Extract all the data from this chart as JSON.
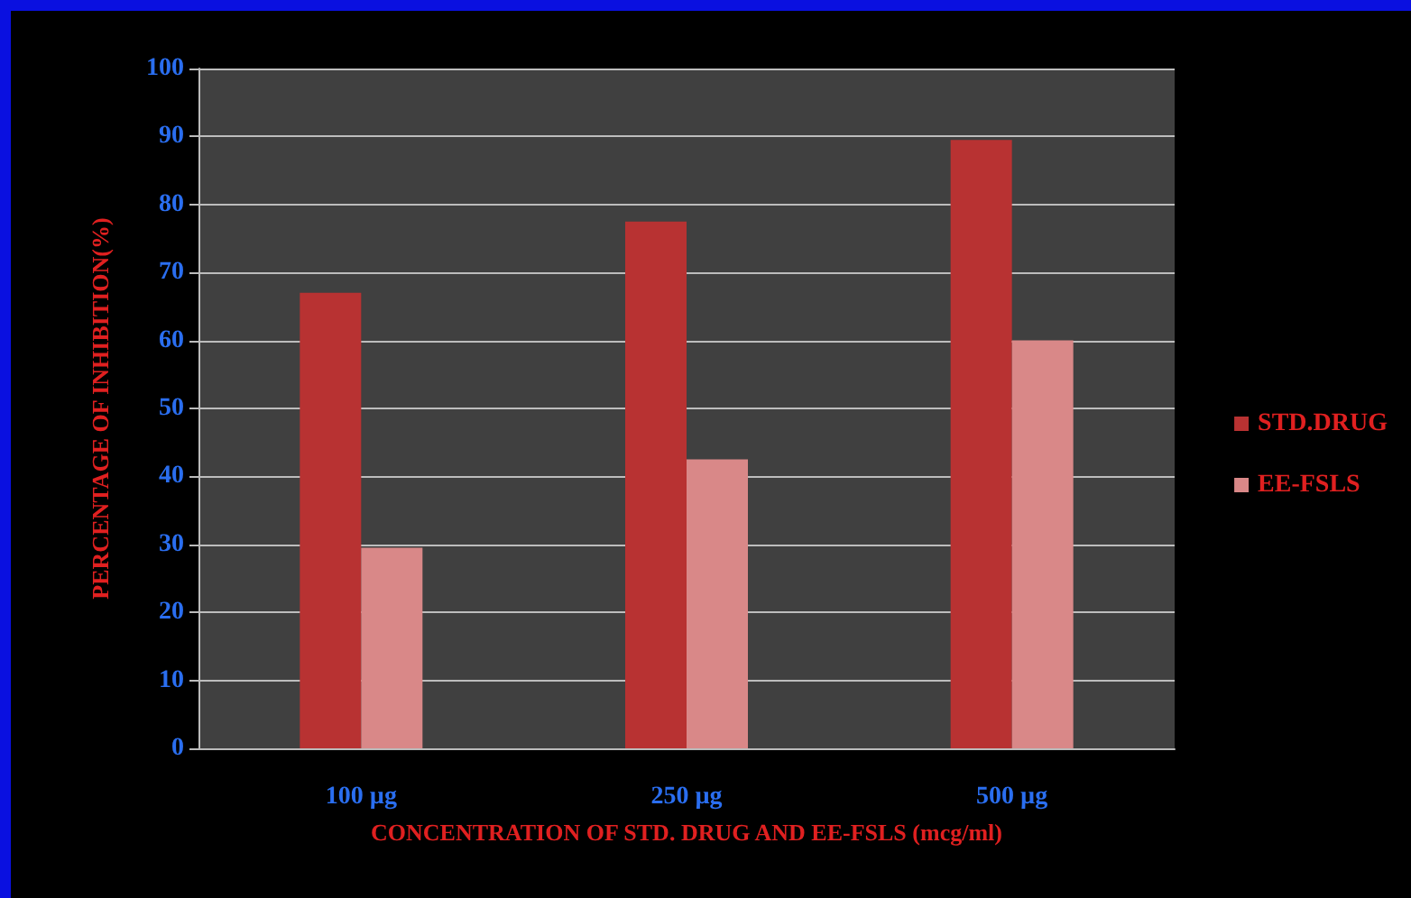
{
  "chart_data": {
    "type": "bar",
    "xlabel": "CONCENTRATION OF STD. DRUG AND EE-FSLS (mcg/ml)",
    "ylabel": "PERCENTAGE OF INHIBITION(%)",
    "categories": [
      "100 µg",
      "250 µg",
      "500 µg"
    ],
    "series": [
      {
        "name": "STD.DRUG",
        "color": "#b83232",
        "values": [
          67,
          77.5,
          89.5
        ]
      },
      {
        "name": "EE-FSLS",
        "color": "#d98888",
        "values": [
          29.5,
          42.5,
          60
        ]
      }
    ],
    "ylim": [
      0,
      100
    ],
    "yticks": [
      0,
      10,
      20,
      30,
      40,
      50,
      60,
      70,
      80,
      90,
      100
    ],
    "grid": "y",
    "legend": "right"
  }
}
